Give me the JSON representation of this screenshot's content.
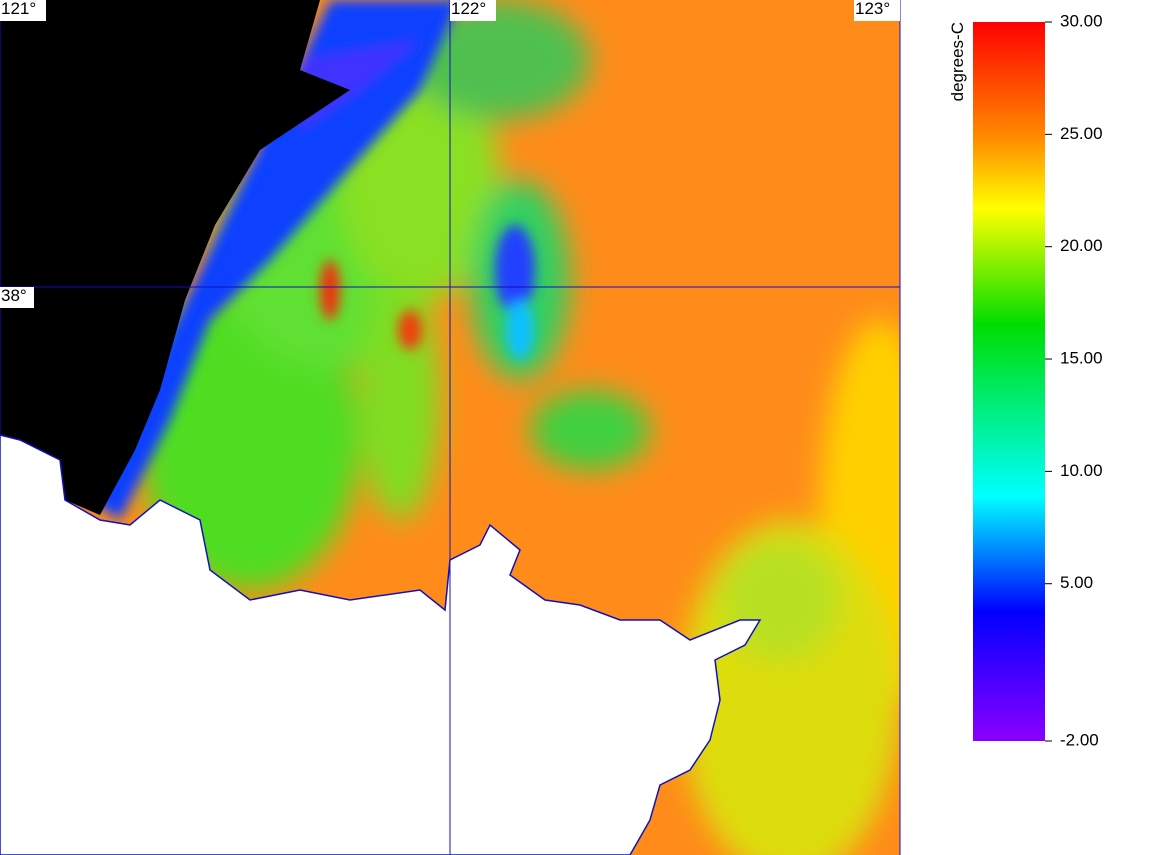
{
  "graticule": {
    "lon": [
      {
        "value": 121,
        "label": "121°"
      },
      {
        "value": 122,
        "label": "122°"
      },
      {
        "value": 123,
        "label": "123°"
      }
    ],
    "lat": [
      {
        "value": 38,
        "label": "38°"
      }
    ]
  },
  "colorbar": {
    "label": "degrees-C",
    "lim": [
      -2,
      30
    ],
    "ticks": [
      {
        "value": 30,
        "label": "30.00"
      },
      {
        "value": 25,
        "label": "25.00"
      },
      {
        "value": 20,
        "label": "20.00"
      },
      {
        "value": 15,
        "label": "15.00"
      },
      {
        "value": 10,
        "label": "10.00"
      },
      {
        "value": 5,
        "label": "5.00"
      },
      {
        "value": -2,
        "label": "-2.00"
      }
    ]
  }
}
